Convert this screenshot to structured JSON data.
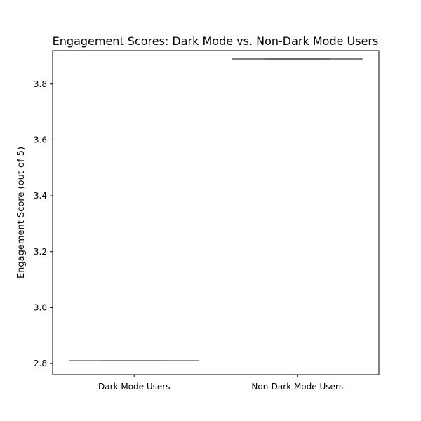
{
  "chart_data": {
    "type": "box",
    "title": "Engagement Scores: Dark Mode vs. Non-Dark Mode Users",
    "xlabel": "",
    "ylabel": "Engagement Score (out of 5)",
    "categories": [
      "Dark Mode Users",
      "Non-Dark Mode Users"
    ],
    "values": [
      2.81,
      3.89
    ],
    "ylim": [
      2.76,
      3.92
    ],
    "yticks": [
      2.8,
      3.0,
      3.2,
      3.4,
      3.6,
      3.8
    ],
    "grid": false,
    "legend": "none",
    "colors": {
      "box_line": "#555555",
      "axes": "#000000"
    }
  }
}
